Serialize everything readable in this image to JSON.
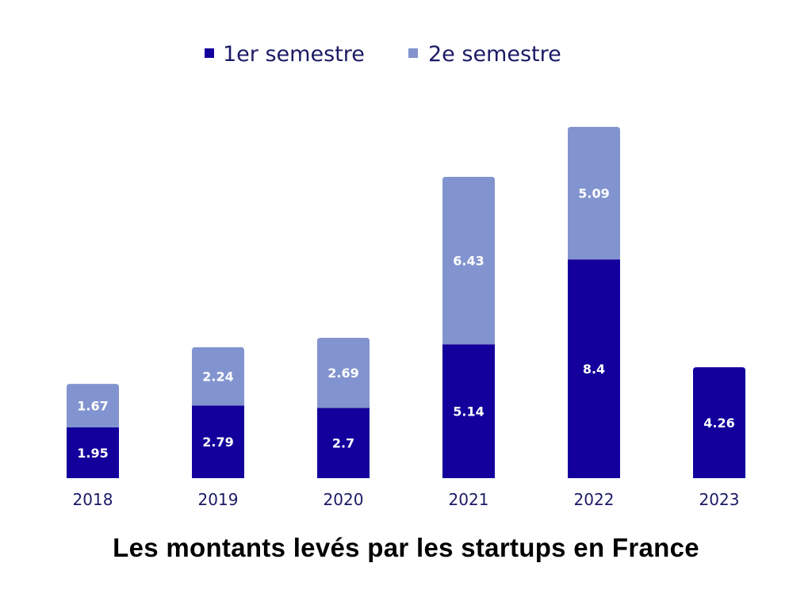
{
  "chart_data": {
    "type": "bar",
    "stacked": true,
    "title": "Les montants levés par les startups en France",
    "categories": [
      "2018",
      "2019",
      "2020",
      "2021",
      "2022",
      "2023"
    ],
    "series": [
      {
        "name": "1er semestre",
        "values": [
          1.95,
          2.79,
          2.7,
          5.14,
          8.4,
          4.26
        ],
        "color": "#13009c"
      },
      {
        "name": "2e semestre",
        "values": [
          1.67,
          2.24,
          2.69,
          6.43,
          5.09,
          null
        ],
        "color": "#8294cf"
      }
    ],
    "value_labels": [
      [
        "1.95",
        "2.79",
        "2.7",
        "5.14",
        "8.4",
        "4.26"
      ],
      [
        "1.67",
        "2.24",
        "2.69",
        "6.43",
        "5.09",
        ""
      ]
    ],
    "ylim": [
      0,
      13.49
    ],
    "grid": false,
    "legend": "top-center",
    "xlabel": "",
    "ylabel": ""
  }
}
